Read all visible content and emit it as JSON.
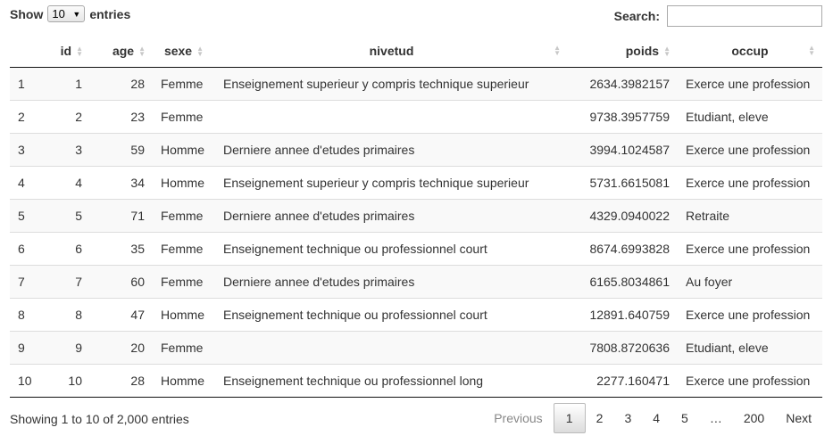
{
  "length": {
    "show_label": "Show",
    "value": "10",
    "entries_label": "entries"
  },
  "search": {
    "label": "Search:",
    "value": ""
  },
  "columns": [
    "",
    "id",
    "age",
    "sexe",
    "nivetud",
    "poids",
    "occup"
  ],
  "rows": [
    [
      "1",
      "1",
      "28",
      "Femme",
      "Enseignement superieur y compris technique superieur",
      "2634.3982157",
      "Exerce une profession"
    ],
    [
      "2",
      "2",
      "23",
      "Femme",
      "",
      "9738.3957759",
      "Etudiant, eleve"
    ],
    [
      "3",
      "3",
      "59",
      "Homme",
      "Derniere annee d'etudes primaires",
      "3994.1024587",
      "Exerce une profession"
    ],
    [
      "4",
      "4",
      "34",
      "Homme",
      "Enseignement superieur y compris technique superieur",
      "5731.6615081",
      "Exerce une profession"
    ],
    [
      "5",
      "5",
      "71",
      "Femme",
      "Derniere annee d'etudes primaires",
      "4329.0940022",
      "Retraite"
    ],
    [
      "6",
      "6",
      "35",
      "Femme",
      "Enseignement technique ou professionnel court",
      "8674.6993828",
      "Exerce une profession"
    ],
    [
      "7",
      "7",
      "60",
      "Femme",
      "Derniere annee d'etudes primaires",
      "6165.8034861",
      "Au foyer"
    ],
    [
      "8",
      "8",
      "47",
      "Homme",
      "Enseignement technique ou professionnel court",
      "12891.640759",
      "Exerce une profession"
    ],
    [
      "9",
      "9",
      "20",
      "Femme",
      "",
      "7808.8720636",
      "Etudiant, eleve"
    ],
    [
      "10",
      "10",
      "28",
      "Homme",
      "Enseignement technique ou professionnel long",
      "2277.160471",
      "Exerce une profession"
    ]
  ],
  "info": "Showing 1 to 10 of 2,000 entries",
  "pagination": {
    "previous": "Previous",
    "pages": [
      "1",
      "2",
      "3",
      "4",
      "5",
      "…",
      "200"
    ],
    "current": "1",
    "next": "Next"
  }
}
